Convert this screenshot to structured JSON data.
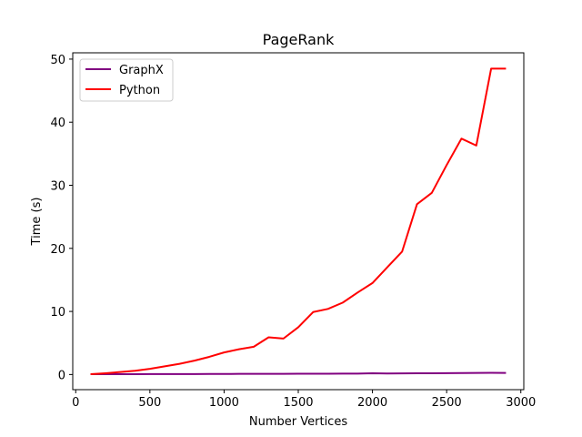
{
  "chart_data": {
    "type": "line",
    "title": "PageRank",
    "xlabel": "Number Vertices",
    "ylabel": "Time (s)",
    "xlim": [
      -20,
      3020
    ],
    "ylim": [
      -2.4,
      51
    ],
    "xticks": [
      0,
      500,
      1000,
      1500,
      2000,
      2500,
      3000
    ],
    "yticks": [
      0,
      10,
      20,
      30,
      40,
      50
    ],
    "grid": false,
    "legend_position": "top-left",
    "x": [
      100,
      200,
      300,
      400,
      500,
      600,
      700,
      800,
      900,
      1000,
      1100,
      1200,
      1300,
      1400,
      1500,
      1600,
      1700,
      1800,
      1900,
      2000,
      2100,
      2200,
      2300,
      2400,
      2500,
      2600,
      2700,
      2800,
      2900
    ],
    "series": [
      {
        "name": "GraphX",
        "color": "#800080",
        "values": [
          0.05,
          0.05,
          0.06,
          0.06,
          0.07,
          0.07,
          0.08,
          0.08,
          0.09,
          0.09,
          0.1,
          0.1,
          0.11,
          0.11,
          0.12,
          0.13,
          0.13,
          0.14,
          0.15,
          0.2,
          0.17,
          0.18,
          0.19,
          0.2,
          0.22,
          0.23,
          0.25,
          0.27,
          0.25
        ]
      },
      {
        "name": "Python",
        "color": "#ff0000",
        "values": [
          0.05,
          0.2,
          0.4,
          0.6,
          0.9,
          1.3,
          1.7,
          2.2,
          2.8,
          3.5,
          4.0,
          4.4,
          5.9,
          5.7,
          7.5,
          9.9,
          10.4,
          11.4,
          13.0,
          14.5,
          17.0,
          19.5,
          27.0,
          28.8,
          33.2,
          37.4,
          36.3,
          48.5,
          48.5
        ]
      }
    ]
  }
}
